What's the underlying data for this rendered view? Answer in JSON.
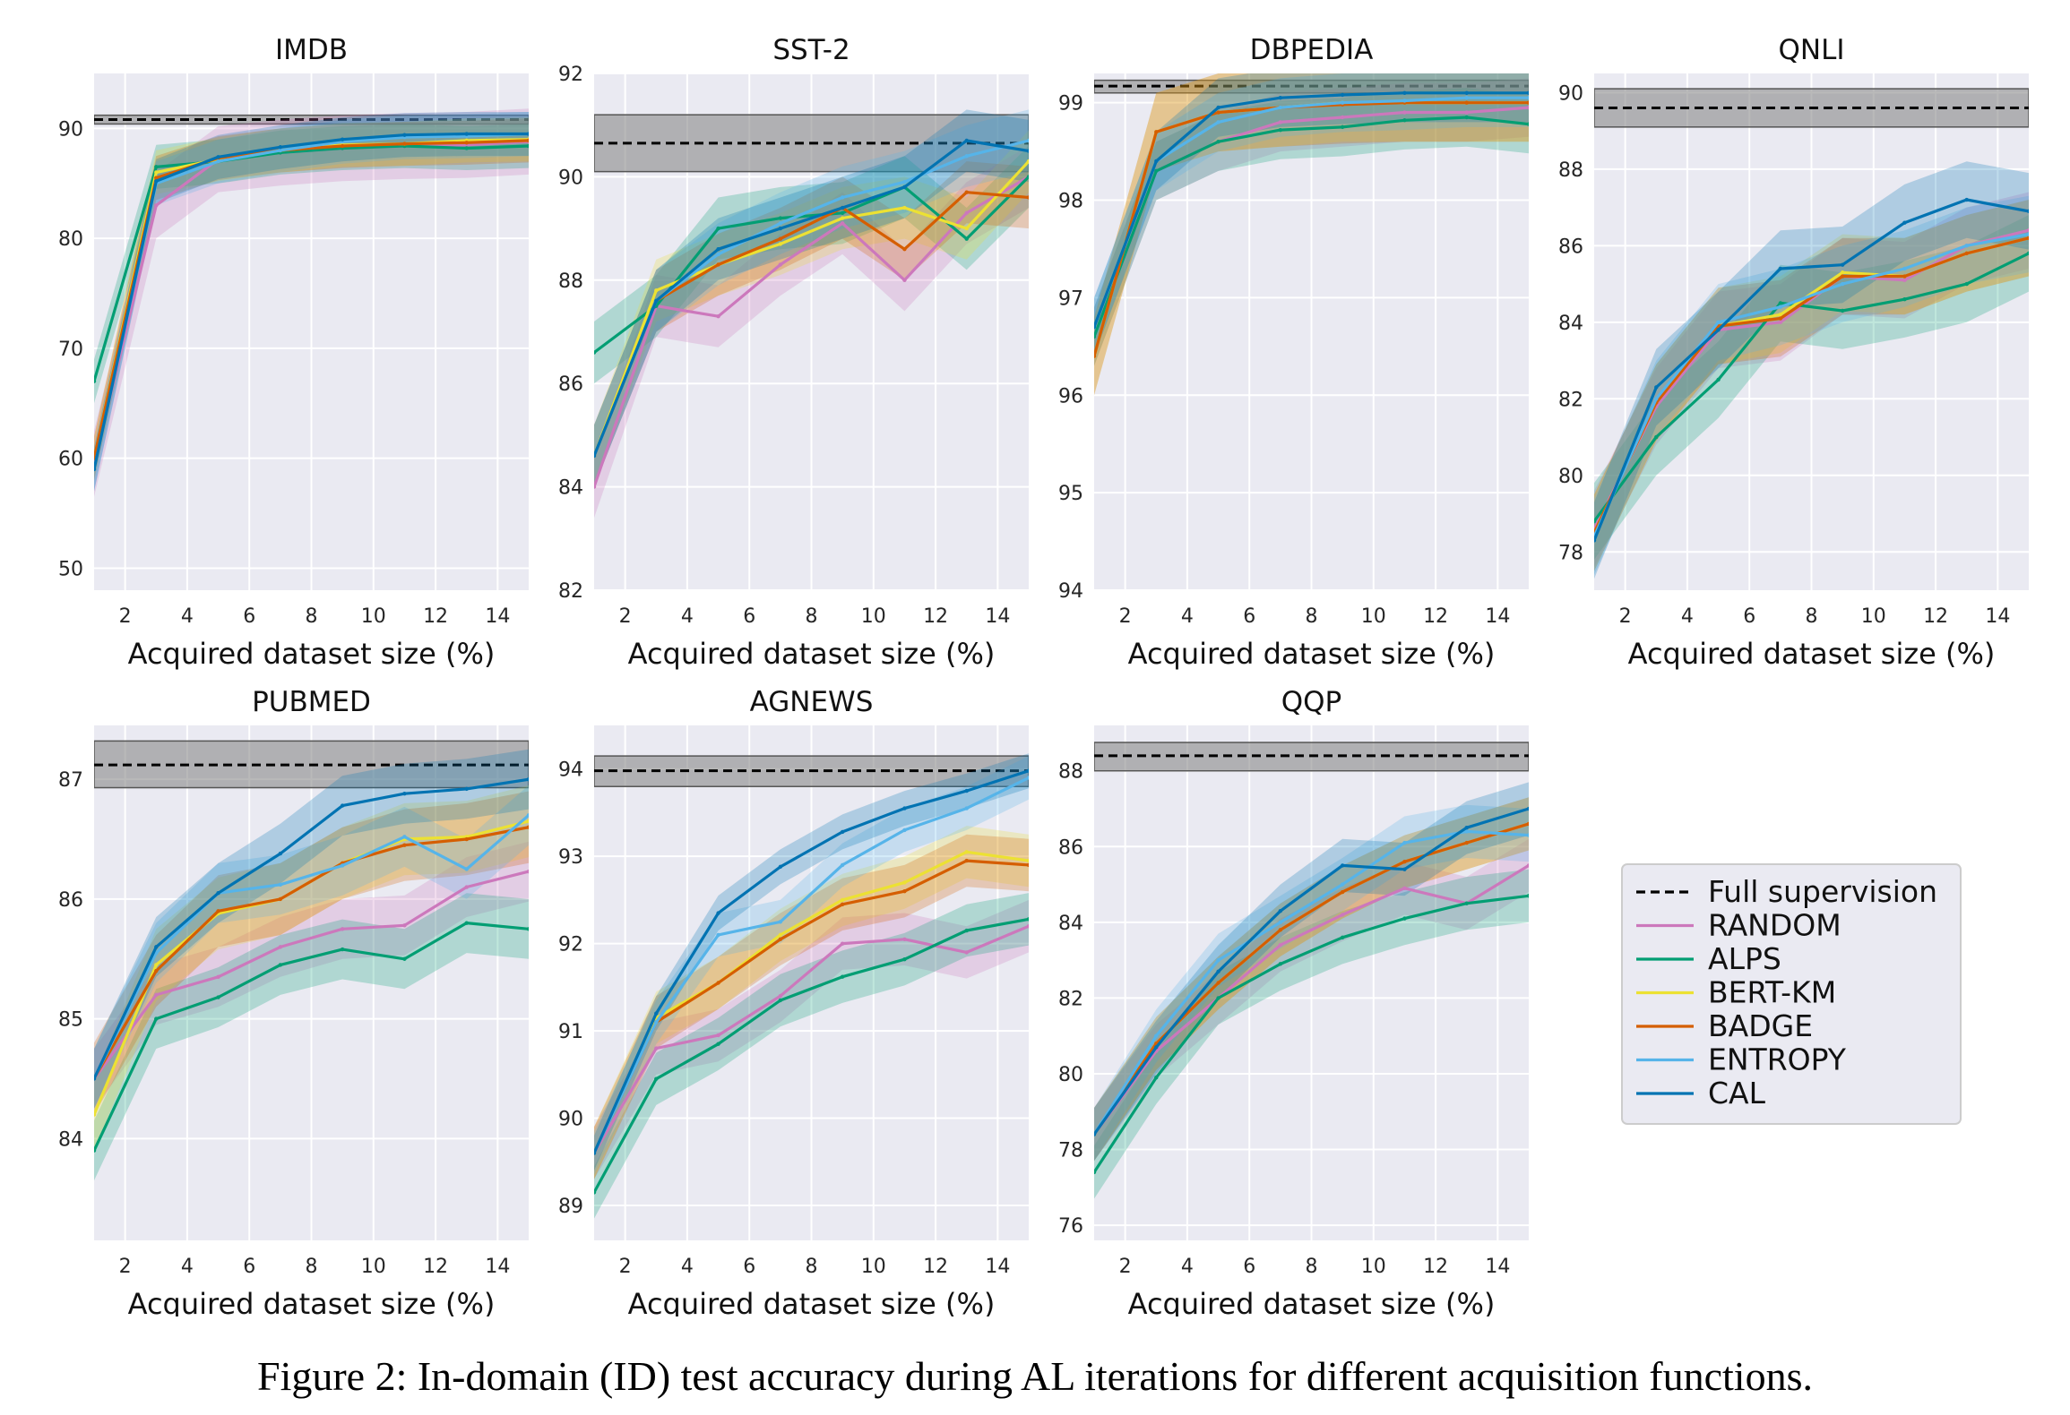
{
  "figure": {
    "caption": "Figure 2: In-domain (ID) test accuracy during AL iterations for different acquisition functions."
  },
  "colors": {
    "RANDOM": "#cc78bc",
    "ALPS": "#029e73",
    "BERT-KM": "#ece133",
    "BADGE": "#d55e00",
    "ENTROPY": "#56b4e9",
    "CAL": "#0173b2",
    "full_supervision": "#000000"
  },
  "legend": {
    "placement": "lower-right (empty grid slot)",
    "entries": [
      "Full supervision",
      "RANDOM",
      "ALPS",
      "BERT-KM",
      "BADGE",
      "ENTROPY",
      "CAL"
    ]
  },
  "chart_data": [
    {
      "type": "line",
      "title": "IMDB",
      "xlabel": "Acquired dataset size (%)",
      "ylabel": "",
      "xlim": [
        1,
        15
      ],
      "ylim": [
        48,
        95
      ],
      "xticks": [
        2,
        4,
        6,
        8,
        10,
        12,
        14
      ],
      "yticks": [
        50,
        60,
        70,
        80,
        90
      ],
      "full_supervision": {
        "mean": 90.8,
        "band": [
          90.4,
          91.2
        ]
      },
      "x": [
        1,
        3,
        5,
        7,
        9,
        11,
        13,
        15
      ],
      "series": [
        {
          "name": "RANDOM",
          "values": [
            59.5,
            83.0,
            87.2,
            87.8,
            88.2,
            88.4,
            88.5,
            88.8
          ],
          "band": 3
        },
        {
          "name": "ALPS",
          "values": [
            67.0,
            86.5,
            87.0,
            87.8,
            88.2,
            88.4,
            88.2,
            88.4
          ],
          "band": 2
        },
        {
          "name": "BERT-KM",
          "values": [
            60.0,
            86.0,
            87.2,
            88.0,
            88.5,
            88.6,
            88.9,
            89.0
          ],
          "band": 2
        },
        {
          "name": "BADGE",
          "values": [
            60.0,
            85.5,
            87.3,
            88.0,
            88.4,
            88.6,
            88.7,
            88.9
          ],
          "band": 2
        },
        {
          "name": "ENTROPY",
          "values": [
            59.0,
            85.0,
            87.0,
            88.0,
            88.8,
            89.2,
            89.3,
            89.5
          ],
          "band": 2
        },
        {
          "name": "CAL",
          "values": [
            59.0,
            85.2,
            87.4,
            88.3,
            89.0,
            89.4,
            89.5,
            89.5
          ],
          "band": 2
        }
      ]
    },
    {
      "type": "line",
      "title": "SST-2",
      "xlabel": "Acquired dataset size (%)",
      "ylabel": "",
      "xlim": [
        1,
        15
      ],
      "ylim": [
        82,
        92
      ],
      "xticks": [
        2,
        4,
        6,
        8,
        10,
        12,
        14
      ],
      "yticks": [
        82,
        84,
        86,
        88,
        90,
        92
      ],
      "full_supervision": {
        "mean": 90.65,
        "band": [
          90.1,
          91.2
        ]
      },
      "x": [
        1,
        3,
        5,
        7,
        9,
        11,
        13,
        15
      ],
      "series": [
        {
          "name": "RANDOM",
          "values": [
            84.0,
            87.5,
            87.3,
            88.3,
            89.1,
            88.0,
            89.3,
            90.0
          ],
          "band": 0.6
        },
        {
          "name": "ALPS",
          "values": [
            86.6,
            87.5,
            89.0,
            89.2,
            89.3,
            89.8,
            88.8,
            90.0
          ],
          "band": 0.6
        },
        {
          "name": "BERT-KM",
          "values": [
            84.6,
            87.8,
            88.3,
            88.7,
            89.2,
            89.4,
            89.0,
            90.3
          ],
          "band": 0.6
        },
        {
          "name": "BADGE",
          "values": [
            84.6,
            87.6,
            88.3,
            88.8,
            89.4,
            88.6,
            89.7,
            89.6
          ],
          "band": 0.6
        },
        {
          "name": "ENTROPY",
          "values": [
            84.6,
            87.6,
            88.5,
            89.1,
            89.6,
            89.9,
            90.4,
            90.7
          ],
          "band": 0.6
        },
        {
          "name": "CAL",
          "values": [
            84.6,
            87.6,
            88.6,
            89.0,
            89.4,
            89.8,
            90.7,
            90.5
          ],
          "band": 0.6
        }
      ]
    },
    {
      "type": "line",
      "title": "DBPEDIA",
      "xlabel": "Acquired dataset size (%)",
      "ylabel": "",
      "xlim": [
        1,
        15
      ],
      "ylim": [
        94,
        99.3
      ],
      "xticks": [
        2,
        4,
        6,
        8,
        10,
        12,
        14
      ],
      "yticks": [
        94,
        95,
        96,
        97,
        98,
        99
      ],
      "full_supervision": {
        "mean": 99.17,
        "band": [
          99.1,
          99.23
        ]
      },
      "x": [
        1,
        3,
        5,
        7,
        9,
        11,
        13,
        15
      ],
      "series": [
        {
          "name": "RANDOM",
          "values": [
            96.6,
            98.3,
            98.6,
            98.8,
            98.85,
            98.9,
            98.9,
            98.95
          ],
          "band": 0.3
        },
        {
          "name": "ALPS",
          "values": [
            96.6,
            98.3,
            98.6,
            98.72,
            98.75,
            98.82,
            98.85,
            98.78
          ],
          "band": 0.3
        },
        {
          "name": "BERT-KM",
          "values": [
            96.4,
            98.7,
            98.9,
            98.95,
            99.0,
            99.0,
            99.0,
            99.0
          ],
          "band": 0.4
        },
        {
          "name": "BADGE",
          "values": [
            96.4,
            98.7,
            98.9,
            98.95,
            98.98,
            99.0,
            99.0,
            99.0
          ],
          "band": 0.4
        },
        {
          "name": "ENTROPY",
          "values": [
            96.7,
            98.4,
            98.8,
            98.95,
            99.0,
            99.02,
            99.05,
            99.05
          ],
          "band": 0.3
        },
        {
          "name": "CAL",
          "values": [
            96.7,
            98.4,
            98.95,
            99.05,
            99.08,
            99.1,
            99.1,
            99.1
          ],
          "band": 0.3
        }
      ]
    },
    {
      "type": "line",
      "title": "QNLI",
      "xlabel": "Acquired dataset size (%)",
      "ylabel": "",
      "xlim": [
        1,
        15
      ],
      "ylim": [
        77,
        90.5
      ],
      "xticks": [
        2,
        4,
        6,
        8,
        10,
        12,
        14
      ],
      "yticks": [
        78,
        80,
        82,
        84,
        86,
        88,
        90
      ],
      "full_supervision": {
        "mean": 89.6,
        "band": [
          89.1,
          90.1
        ]
      },
      "x": [
        1,
        3,
        5,
        7,
        9,
        11,
        13,
        15
      ],
      "series": [
        {
          "name": "RANDOM",
          "values": [
            78.6,
            81.8,
            83.8,
            84.0,
            85.2,
            85.1,
            86.0,
            86.4
          ],
          "band": 1.0
        },
        {
          "name": "ALPS",
          "values": [
            78.8,
            81.0,
            82.5,
            84.5,
            84.3,
            84.6,
            85.0,
            85.8
          ],
          "band": 1.0
        },
        {
          "name": "BERT-KM",
          "values": [
            78.5,
            81.9,
            83.9,
            84.2,
            85.3,
            85.2,
            85.8,
            86.2
          ],
          "band": 1.0
        },
        {
          "name": "BADGE",
          "values": [
            78.5,
            81.9,
            83.9,
            84.1,
            85.2,
            85.2,
            85.8,
            86.2
          ],
          "band": 1.0
        },
        {
          "name": "ENTROPY",
          "values": [
            78.4,
            82.0,
            84.0,
            84.4,
            85.0,
            85.4,
            86.0,
            86.3
          ],
          "band": 1.0
        },
        {
          "name": "CAL",
          "values": [
            78.3,
            82.3,
            83.8,
            85.4,
            85.5,
            86.6,
            87.2,
            86.9
          ],
          "band": 1.0
        }
      ]
    },
    {
      "type": "line",
      "title": "PUBMED",
      "xlabel": "Acquired dataset size (%)",
      "ylabel": "",
      "xlim": [
        1,
        15
      ],
      "ylim": [
        83.15,
        87.45
      ],
      "xticks": [
        2,
        4,
        6,
        8,
        10,
        12,
        14
      ],
      "yticks": [
        84,
        85,
        86,
        87
      ],
      "full_supervision": {
        "mean": 87.12,
        "band": [
          86.93,
          87.32
        ]
      },
      "x": [
        1,
        3,
        5,
        7,
        9,
        11,
        13,
        15
      ],
      "series": [
        {
          "name": "RANDOM",
          "values": [
            84.5,
            85.2,
            85.35,
            85.6,
            85.75,
            85.78,
            86.1,
            86.23
          ],
          "band": 0.25
        },
        {
          "name": "ALPS",
          "values": [
            83.9,
            85.0,
            85.18,
            85.45,
            85.58,
            85.5,
            85.8,
            85.75
          ],
          "band": 0.25
        },
        {
          "name": "BERT-KM",
          "values": [
            84.2,
            85.45,
            85.88,
            86.0,
            86.3,
            86.5,
            86.52,
            86.65
          ],
          "band": 0.3
        },
        {
          "name": "BADGE",
          "values": [
            84.5,
            85.4,
            85.9,
            86.0,
            86.3,
            86.45,
            86.5,
            86.6
          ],
          "band": 0.3
        },
        {
          "name": "ENTROPY",
          "values": [
            84.5,
            85.55,
            86.05,
            86.12,
            86.28,
            86.52,
            86.25,
            86.7
          ],
          "band": 0.25
        },
        {
          "name": "CAL",
          "values": [
            84.5,
            85.6,
            86.05,
            86.38,
            86.78,
            86.88,
            86.92,
            87.0
          ],
          "band": 0.25
        }
      ]
    },
    {
      "type": "line",
      "title": "AGNEWS",
      "xlabel": "Acquired dataset size (%)",
      "ylabel": "",
      "xlim": [
        1,
        15
      ],
      "ylim": [
        88.6,
        94.5
      ],
      "xticks": [
        2,
        4,
        6,
        8,
        10,
        12,
        14
      ],
      "yticks": [
        89,
        90,
        91,
        92,
        93,
        94
      ],
      "full_supervision": {
        "mean": 93.98,
        "band": [
          93.8,
          94.15
        ]
      },
      "x": [
        1,
        3,
        5,
        7,
        9,
        11,
        13,
        15
      ],
      "series": [
        {
          "name": "RANDOM",
          "values": [
            89.6,
            90.8,
            90.95,
            91.4,
            92.0,
            92.05,
            91.9,
            92.2
          ],
          "band": 0.3
        },
        {
          "name": "ALPS",
          "values": [
            89.15,
            90.45,
            90.85,
            91.35,
            91.62,
            91.82,
            92.15,
            92.28
          ],
          "band": 0.3
        },
        {
          "name": "BERT-KM",
          "values": [
            89.6,
            91.15,
            91.55,
            92.1,
            92.5,
            92.7,
            93.05,
            92.95
          ],
          "band": 0.3
        },
        {
          "name": "BADGE",
          "values": [
            89.6,
            91.1,
            91.55,
            92.05,
            92.45,
            92.6,
            92.95,
            92.9
          ],
          "band": 0.3
        },
        {
          "name": "ENTROPY",
          "values": [
            89.6,
            91.1,
            92.1,
            92.25,
            92.9,
            93.3,
            93.55,
            93.9
          ],
          "band": 0.25
        },
        {
          "name": "CAL",
          "values": [
            89.6,
            91.2,
            92.35,
            92.88,
            93.28,
            93.55,
            93.75,
            93.98
          ],
          "band": 0.2
        }
      ]
    },
    {
      "type": "line",
      "title": "QQP",
      "xlabel": "Acquired dataset size (%)",
      "ylabel": "",
      "xlim": [
        1,
        15
      ],
      "ylim": [
        75.6,
        89.2
      ],
      "xticks": [
        2,
        4,
        6,
        8,
        10,
        12,
        14
      ],
      "yticks": [
        76,
        78,
        80,
        82,
        84,
        86,
        88
      ],
      "full_supervision": {
        "mean": 88.4,
        "band": [
          88.0,
          88.75
        ]
      },
      "x": [
        1,
        3,
        5,
        7,
        9,
        11,
        13,
        15
      ],
      "series": [
        {
          "name": "RANDOM",
          "values": [
            78.4,
            80.6,
            82.0,
            83.4,
            84.2,
            84.9,
            84.5,
            85.5
          ],
          "band": 0.7
        },
        {
          "name": "ALPS",
          "values": [
            77.4,
            79.9,
            82.0,
            82.9,
            83.6,
            84.1,
            84.5,
            84.7
          ],
          "band": 0.7
        },
        {
          "name": "BERT-KM",
          "values": [
            78.4,
            80.8,
            82.4,
            83.8,
            84.8,
            85.6,
            86.1,
            86.6
          ],
          "band": 0.7
        },
        {
          "name": "BADGE",
          "values": [
            78.4,
            80.8,
            82.4,
            83.8,
            84.8,
            85.6,
            86.1,
            86.6
          ],
          "band": 0.7
        },
        {
          "name": "ENTROPY",
          "values": [
            78.4,
            81.0,
            83.0,
            84.0,
            85.0,
            86.1,
            86.4,
            86.3
          ],
          "band": 0.7
        },
        {
          "name": "CAL",
          "values": [
            78.4,
            80.7,
            82.7,
            84.3,
            85.5,
            85.4,
            86.5,
            87.0
          ],
          "band": 0.7
        }
      ]
    }
  ]
}
